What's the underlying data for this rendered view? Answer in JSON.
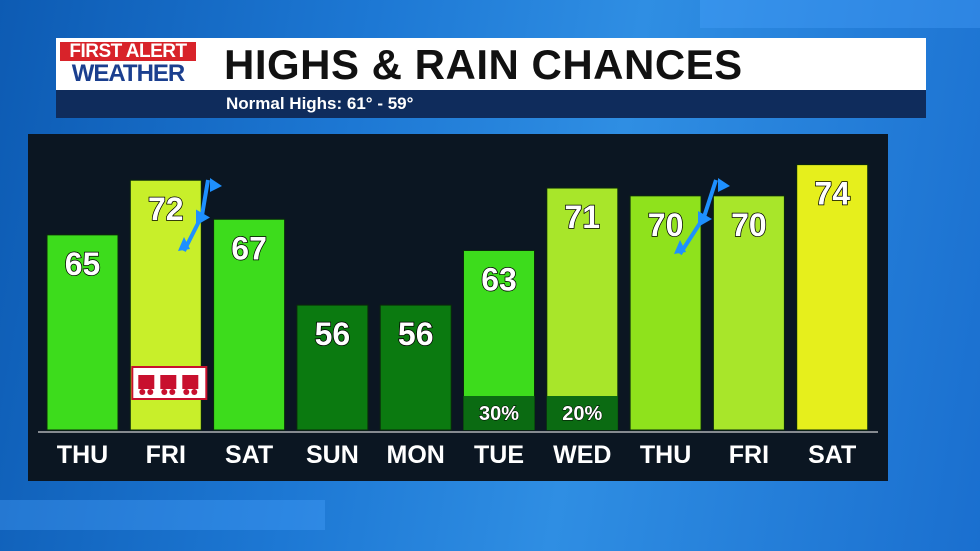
{
  "header": {
    "logo_top": "FIRST ALERT",
    "logo_bottom": "WEATHER",
    "title": "HIGHS & RAIN CHANCES",
    "subtitle": "Normal Highs: 61° - 59°"
  },
  "colors": {
    "header_bg": "#ffffff",
    "subtitle_bg": "#0f2c5c",
    "chart_bg": "#0b1622",
    "front_blue": "#1e90ff",
    "logo_red": "#d8232a",
    "logo_blue": "#1b3f8f"
  },
  "chart_data": {
    "type": "bar",
    "categories": [
      "THU",
      "FRI",
      "SAT",
      "SUN",
      "MON",
      "TUE",
      "WED",
      "THU",
      "FRI",
      "SAT"
    ],
    "values": [
      65,
      72,
      67,
      56,
      56,
      63,
      71,
      70,
      70,
      74
    ],
    "rain_chances": [
      "",
      "",
      "",
      "",
      "",
      "30%",
      "20%",
      "",
      "",
      ""
    ],
    "bar_colors": [
      "#3ddc1c",
      "#c8ef2a",
      "#3ddc1c",
      "#0b7a10",
      "#0b7a10",
      "#3ddc1c",
      "#a8e62a",
      "#8fe21c",
      "#a8e62a",
      "#e6ef1c"
    ],
    "title": "HIGHS & RAIN CHANCES",
    "ylabel": "",
    "ylim": [
      40,
      76
    ],
    "annotations": [
      "cold front between FRI and SAT",
      "cold front between THU and FRI",
      "Toys for Tots logo on FRI"
    ]
  }
}
